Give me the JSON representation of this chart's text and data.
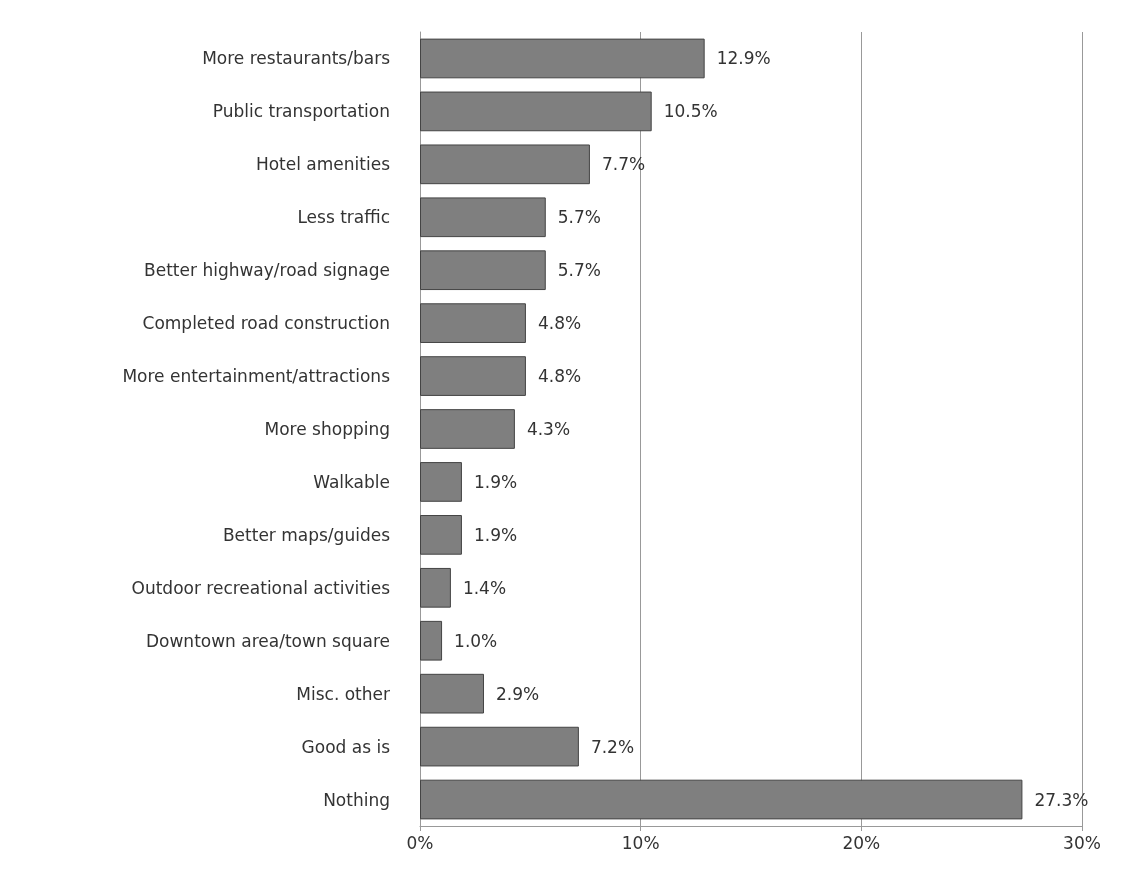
{
  "chart_data": {
    "type": "bar",
    "orientation": "horizontal",
    "categories": [
      "More restaurants/bars",
      "Public transportation",
      "Hotel amenities",
      "Less traffic",
      "Better highway/road signage",
      "Completed road construction",
      "More entertainment/attractions",
      "More shopping",
      "Walkable",
      "Better maps/guides",
      "Outdoor recreational activities",
      "Downtown area/town square",
      "Misc. other",
      "Good as is",
      "Nothing"
    ],
    "values": [
      12.9,
      10.5,
      7.7,
      5.7,
      5.7,
      4.8,
      4.8,
      4.3,
      1.9,
      1.9,
      1.4,
      1.0,
      2.9,
      7.2,
      27.3
    ],
    "value_labels": [
      "12.9%",
      "10.5%",
      "7.7%",
      "5.7%",
      "5.7%",
      "4.8%",
      "4.8%",
      "4.3%",
      "1.9%",
      "1.9%",
      "1.4%",
      "1.0%",
      "2.9%",
      "7.2%",
      "27.3%"
    ],
    "color": "#7f7f7f",
    "xlim": [
      0,
      30
    ],
    "xticks": [
      {
        "value": 0,
        "label": "0%"
      },
      {
        "value": 10,
        "label": "10%"
      },
      {
        "value": 20,
        "label": "20%"
      },
      {
        "value": 30,
        "label": "30%"
      }
    ],
    "grid": "x"
  }
}
